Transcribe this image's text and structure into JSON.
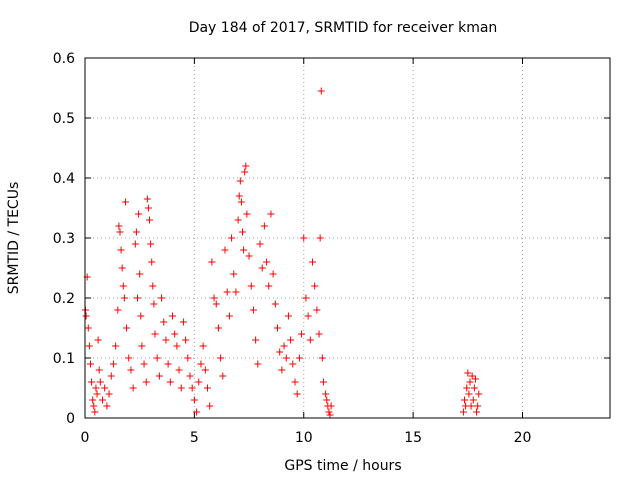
{
  "chart_data": {
    "type": "scatter",
    "title": "Day 184 of 2017, SRMTID for receiver kman",
    "xlabel": "GPS time / hours",
    "ylabel": "SRMTID / TECUs",
    "xlim": [
      0,
      24
    ],
    "ylim": [
      0,
      0.6
    ],
    "xticks": [
      0,
      5,
      10,
      15,
      20
    ],
    "yticks": [
      0,
      0.1,
      0.2,
      0.3,
      0.4,
      0.5,
      0.6
    ],
    "ytick_labels": [
      "0",
      "0.1",
      "0.2",
      "0.3",
      "0.4",
      "0.5",
      "0.6"
    ],
    "grid": true,
    "marker": "+",
    "color": "#ff0000",
    "series": [
      {
        "name": "kman",
        "points": [
          [
            0.02,
            0.18
          ],
          [
            0.05,
            0.17
          ],
          [
            0.1,
            0.235
          ],
          [
            0.15,
            0.15
          ],
          [
            0.2,
            0.12
          ],
          [
            0.25,
            0.09
          ],
          [
            0.3,
            0.06
          ],
          [
            0.35,
            0.03
          ],
          [
            0.4,
            0.02
          ],
          [
            0.45,
            0.01
          ],
          [
            0.5,
            0.05
          ],
          [
            0.55,
            0.04
          ],
          [
            0.6,
            0.13
          ],
          [
            0.65,
            0.08
          ],
          [
            0.7,
            0.06
          ],
          [
            0.8,
            0.03
          ],
          [
            0.9,
            0.05
          ],
          [
            1.0,
            0.02
          ],
          [
            1.1,
            0.04
          ],
          [
            1.2,
            0.07
          ],
          [
            1.3,
            0.09
          ],
          [
            1.4,
            0.12
          ],
          [
            1.5,
            0.18
          ],
          [
            1.55,
            0.32
          ],
          [
            1.6,
            0.31
          ],
          [
            1.65,
            0.28
          ],
          [
            1.7,
            0.25
          ],
          [
            1.75,
            0.22
          ],
          [
            1.8,
            0.2
          ],
          [
            1.85,
            0.36
          ],
          [
            1.9,
            0.15
          ],
          [
            2.0,
            0.1
          ],
          [
            2.1,
            0.08
          ],
          [
            2.2,
            0.05
          ],
          [
            2.3,
            0.29
          ],
          [
            2.35,
            0.31
          ],
          [
            2.4,
            0.2
          ],
          [
            2.45,
            0.34
          ],
          [
            2.5,
            0.24
          ],
          [
            2.55,
            0.17
          ],
          [
            2.6,
            0.12
          ],
          [
            2.7,
            0.09
          ],
          [
            2.8,
            0.06
          ],
          [
            2.85,
            0.365
          ],
          [
            2.9,
            0.35
          ],
          [
            2.95,
            0.33
          ],
          [
            3.0,
            0.29
          ],
          [
            3.05,
            0.26
          ],
          [
            3.1,
            0.22
          ],
          [
            3.15,
            0.19
          ],
          [
            3.2,
            0.14
          ],
          [
            3.3,
            0.1
          ],
          [
            3.4,
            0.07
          ],
          [
            3.5,
            0.2
          ],
          [
            3.6,
            0.16
          ],
          [
            3.7,
            0.13
          ],
          [
            3.8,
            0.09
          ],
          [
            3.9,
            0.06
          ],
          [
            4.0,
            0.17
          ],
          [
            4.1,
            0.14
          ],
          [
            4.2,
            0.12
          ],
          [
            4.3,
            0.08
          ],
          [
            4.4,
            0.05
          ],
          [
            4.5,
            0.16
          ],
          [
            4.6,
            0.13
          ],
          [
            4.7,
            0.1
          ],
          [
            4.8,
            0.07
          ],
          [
            4.9,
            0.05
          ],
          [
            5.0,
            0.03
          ],
          [
            5.1,
            0.01
          ],
          [
            5.2,
            0.06
          ],
          [
            5.3,
            0.09
          ],
          [
            5.4,
            0.12
          ],
          [
            5.5,
            0.08
          ],
          [
            5.6,
            0.05
          ],
          [
            5.7,
            0.02
          ],
          [
            5.8,
            0.26
          ],
          [
            5.9,
            0.2
          ],
          [
            6.0,
            0.19
          ],
          [
            6.1,
            0.15
          ],
          [
            6.2,
            0.1
          ],
          [
            6.3,
            0.07
          ],
          [
            6.4,
            0.28
          ],
          [
            6.5,
            0.21
          ],
          [
            6.6,
            0.17
          ],
          [
            6.7,
            0.3
          ],
          [
            6.8,
            0.24
          ],
          [
            6.9,
            0.21
          ],
          [
            7.0,
            0.33
          ],
          [
            7.05,
            0.37
          ],
          [
            7.1,
            0.395
          ],
          [
            7.15,
            0.36
          ],
          [
            7.2,
            0.31
          ],
          [
            7.25,
            0.28
          ],
          [
            7.3,
            0.41
          ],
          [
            7.35,
            0.42
          ],
          [
            7.4,
            0.34
          ],
          [
            7.5,
            0.27
          ],
          [
            7.6,
            0.22
          ],
          [
            7.7,
            0.18
          ],
          [
            7.8,
            0.13
          ],
          [
            7.9,
            0.09
          ],
          [
            8.0,
            0.29
          ],
          [
            8.1,
            0.25
          ],
          [
            8.2,
            0.32
          ],
          [
            8.3,
            0.26
          ],
          [
            8.4,
            0.22
          ],
          [
            8.5,
            0.34
          ],
          [
            8.6,
            0.24
          ],
          [
            8.7,
            0.19
          ],
          [
            8.8,
            0.15
          ],
          [
            8.9,
            0.11
          ],
          [
            9.0,
            0.08
          ],
          [
            9.1,
            0.12
          ],
          [
            9.2,
            0.1
          ],
          [
            9.3,
            0.17
          ],
          [
            9.4,
            0.13
          ],
          [
            9.5,
            0.09
          ],
          [
            9.6,
            0.06
          ],
          [
            9.7,
            0.04
          ],
          [
            9.8,
            0.1
          ],
          [
            9.9,
            0.14
          ],
          [
            10.0,
            0.3
          ],
          [
            10.1,
            0.2
          ],
          [
            10.2,
            0.17
          ],
          [
            10.3,
            0.13
          ],
          [
            10.4,
            0.26
          ],
          [
            10.5,
            0.22
          ],
          [
            10.6,
            0.18
          ],
          [
            10.7,
            0.14
          ],
          [
            10.75,
            0.3
          ],
          [
            10.8,
            0.545
          ],
          [
            10.85,
            0.1
          ],
          [
            10.9,
            0.06
          ],
          [
            11.0,
            0.04
          ],
          [
            11.05,
            0.03
          ],
          [
            11.1,
            0.02
          ],
          [
            11.15,
            0.01
          ],
          [
            11.2,
            0.005
          ],
          [
            11.25,
            0.02
          ],
          [
            17.3,
            0.01
          ],
          [
            17.35,
            0.03
          ],
          [
            17.4,
            0.02
          ],
          [
            17.45,
            0.05
          ],
          [
            17.5,
            0.075
          ],
          [
            17.55,
            0.04
          ],
          [
            17.6,
            0.06
          ],
          [
            17.65,
            0.02
          ],
          [
            17.7,
            0.07
          ],
          [
            17.75,
            0.03
          ],
          [
            17.8,
            0.05
          ],
          [
            17.85,
            0.065
          ],
          [
            17.9,
            0.01
          ],
          [
            17.95,
            0.02
          ],
          [
            18.0,
            0.04
          ]
        ]
      }
    ]
  }
}
